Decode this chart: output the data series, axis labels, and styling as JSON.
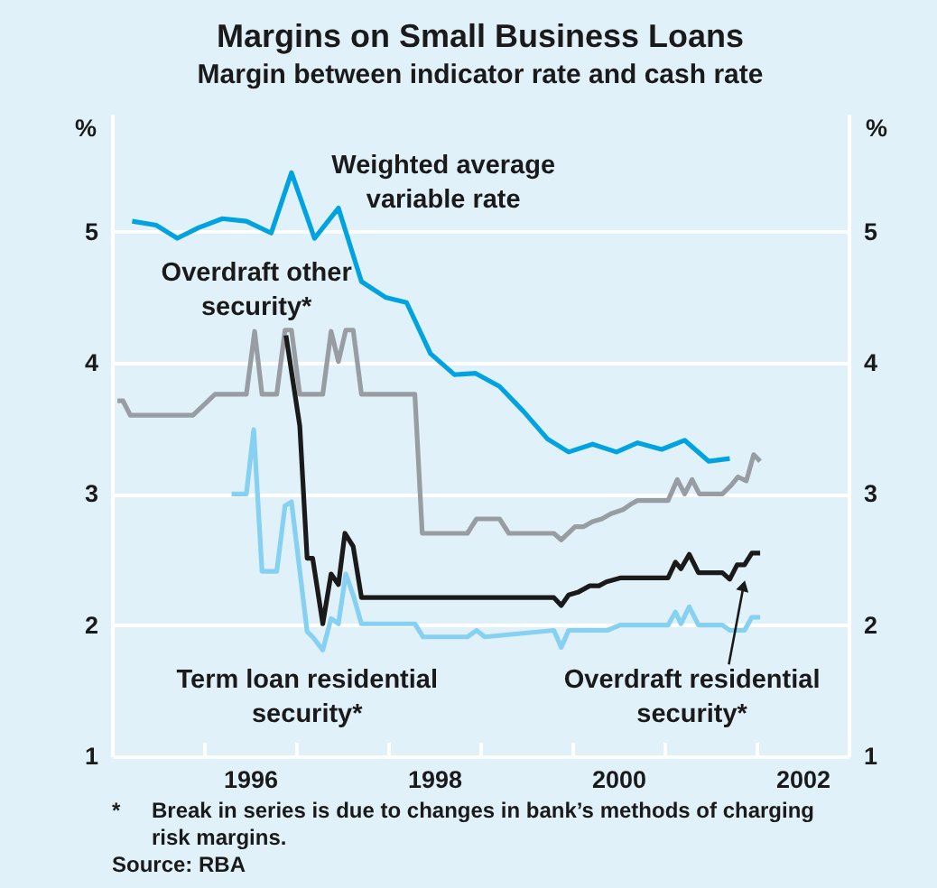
{
  "chart_data": {
    "type": "line",
    "title": "Margins on Small Business Loans",
    "subtitle": "Margin between indicator rate and cash rate",
    "ylabel": "%",
    "y2label": "%",
    "xlim": [
      1995,
      2003
    ],
    "xticks": [
      {
        "value": 1996,
        "label": null
      },
      {
        "value": 1996.5,
        "label": "1996"
      },
      {
        "value": 1997,
        "label": null
      },
      {
        "value": 1998,
        "label": null
      },
      {
        "value": 1998.5,
        "label": "1998"
      },
      {
        "value": 1999,
        "label": null
      },
      {
        "value": 2000,
        "label": null
      },
      {
        "value": 2000.5,
        "label": "2000"
      },
      {
        "value": 2001,
        "label": null
      },
      {
        "value": 2002,
        "label": null
      },
      {
        "value": 2002.5,
        "label": "2002"
      }
    ],
    "ylim": [
      1,
      5.9
    ],
    "yticks": [
      1,
      2,
      3,
      4,
      5
    ],
    "y2lim": [
      1,
      5.9
    ],
    "y2ticks": [
      1,
      2,
      3,
      4,
      5
    ],
    "grid": "y",
    "series": [
      {
        "name": "Weighted average variable rate",
        "color": "#00a3e0",
        "x": [
          1995.22,
          1995.48,
          1995.71,
          1995.94,
          1996.2,
          1996.46,
          1996.73,
          1996.95,
          1997.2,
          1997.46,
          1997.71,
          1997.97,
          1998.2,
          1998.46,
          1998.72,
          1998.95,
          1999.21,
          1999.47,
          1999.73,
          1999.96,
          2000.22,
          2000.48,
          2000.71,
          2000.97,
          2001.22,
          2001.48,
          2001.71
        ],
        "values": [
          5.08,
          5.05,
          4.95,
          5.03,
          5.1,
          5.08,
          4.99,
          5.45,
          4.95,
          5.18,
          4.62,
          4.5,
          4.46,
          4.07,
          3.91,
          3.92,
          3.82,
          3.63,
          3.42,
          3.32,
          3.38,
          3.32,
          3.39,
          3.34,
          3.41,
          3.25,
          3.27
        ]
      },
      {
        "name": "Overdraft other security*",
        "color": "#979da2",
        "x": [
          1995.06,
          1995.12,
          1995.2,
          1995.88,
          1996.12,
          1996.46,
          1996.55,
          1996.63,
          1996.79,
          1996.88,
          1996.95,
          1997.04,
          1997.29,
          1997.38,
          1997.46,
          1997.54,
          1997.62,
          1997.71,
          1998.29,
          1998.37,
          1998.86,
          1998.96,
          1999.21,
          1999.31,
          1999.8,
          1999.88,
          2000.03,
          2000.12,
          2000.22,
          2000.32,
          2000.42,
          2000.55,
          2000.63,
          2000.71,
          2001.04,
          2001.14,
          2001.22,
          2001.3,
          2001.38,
          2001.63,
          2001.73,
          2001.8,
          2001.89,
          2001.97,
          2002.04
        ],
        "values": [
          3.71,
          3.71,
          3.6,
          3.6,
          3.76,
          3.76,
          4.24,
          3.76,
          3.76,
          4.25,
          4.25,
          3.76,
          3.76,
          4.24,
          4.01,
          4.25,
          4.25,
          3.76,
          3.76,
          2.7,
          2.7,
          2.81,
          2.81,
          2.7,
          2.7,
          2.65,
          2.75,
          2.75,
          2.79,
          2.81,
          2.85,
          2.88,
          2.92,
          2.95,
          2.95,
          3.11,
          3.0,
          3.11,
          3.0,
          3.0,
          3.07,
          3.13,
          3.1,
          3.3,
          3.25
        ]
      },
      {
        "name": "Overdraft residential security*",
        "color": "#1a1a1a",
        "x": [
          1996.89,
          1997.04,
          1997.12,
          1997.18,
          1997.29,
          1997.38,
          1997.46,
          1997.53,
          1997.62,
          1997.71,
          1999.8,
          1999.88,
          1999.96,
          2000.06,
          2000.19,
          2000.29,
          2000.37,
          2000.52,
          2001.04,
          2001.12,
          2001.18,
          2001.27,
          2001.37,
          2001.63,
          2001.71,
          2001.79,
          2001.87,
          2001.95,
          2002.04
        ],
        "values": [
          4.21,
          3.52,
          2.51,
          2.51,
          2.01,
          2.39,
          2.31,
          2.7,
          2.6,
          2.21,
          2.21,
          2.15,
          2.23,
          2.25,
          2.3,
          2.3,
          2.33,
          2.36,
          2.36,
          2.48,
          2.43,
          2.54,
          2.4,
          2.4,
          2.35,
          2.46,
          2.46,
          2.55,
          2.55
        ]
      },
      {
        "name": "Term loan residential security*",
        "color": "#86d0f2",
        "x": [
          1996.3,
          1996.46,
          1996.54,
          1996.63,
          1996.79,
          1996.88,
          1996.95,
          1997.12,
          1997.18,
          1997.29,
          1997.38,
          1997.46,
          1997.54,
          1997.62,
          1997.71,
          1998.29,
          1998.38,
          1998.86,
          1998.96,
          1999.05,
          1999.8,
          1999.88,
          1999.96,
          2000.38,
          2000.52,
          2001.04,
          2001.12,
          2001.18,
          2001.27,
          2001.37,
          2001.63,
          2001.71,
          2001.87,
          2001.95,
          2002.04
        ],
        "values": [
          3.0,
          3.0,
          3.49,
          2.41,
          2.41,
          2.91,
          2.94,
          1.95,
          1.91,
          1.81,
          2.05,
          2.01,
          2.39,
          2.23,
          2.01,
          2.01,
          1.91,
          1.91,
          1.96,
          1.91,
          1.96,
          1.83,
          1.96,
          1.96,
          2.0,
          2.0,
          2.1,
          2.01,
          2.14,
          2.0,
          2.0,
          1.96,
          1.96,
          2.06,
          2.06
        ]
      }
    ],
    "annotations": [
      "* Break in series is due to changes in bank’s methods of charging risk margins.",
      "Source: RBA"
    ]
  }
}
